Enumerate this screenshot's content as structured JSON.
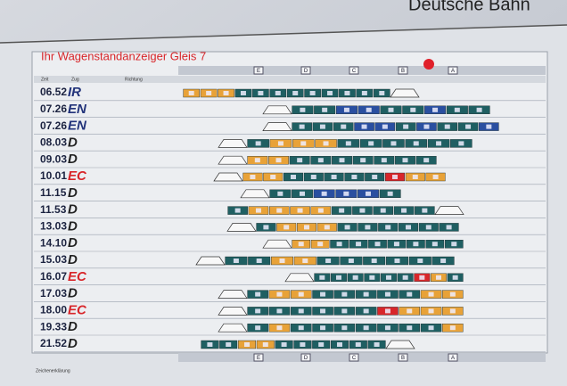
{
  "header": {
    "brand": "Deutsche Bahn",
    "title": "Ihr Wagenstandanzeiger Gleis 7"
  },
  "sectors": [
    "E",
    "D",
    "C",
    "B",
    "A"
  ],
  "columns": [
    "Zeit",
    "Zug",
    "Richtung"
  ],
  "rows": [
    {
      "time": "06.52",
      "train": "IR",
      "color": "#22337a"
    },
    {
      "time": "07.26",
      "train": "EN",
      "color": "#22337a"
    },
    {
      "time": "07.26",
      "train": "EN",
      "color": "#22337a"
    },
    {
      "time": "08.03",
      "train": "D",
      "color": "#222222"
    },
    {
      "time": "09.03",
      "train": "D",
      "color": "#222222"
    },
    {
      "time": "10.01",
      "train": "EC",
      "color": "#d8262a"
    },
    {
      "time": "11.15",
      "train": "D",
      "color": "#222222"
    },
    {
      "time": "11.53",
      "train": "D",
      "color": "#222222"
    },
    {
      "time": "13.03",
      "train": "D",
      "color": "#222222"
    },
    {
      "time": "14.10",
      "train": "D",
      "color": "#222222"
    },
    {
      "time": "15.03",
      "train": "D",
      "color": "#222222"
    },
    {
      "time": "16.07",
      "train": "EC",
      "color": "#d8262a"
    },
    {
      "time": "17.03",
      "train": "D",
      "color": "#222222"
    },
    {
      "time": "18.00",
      "train": "EC",
      "color": "#d8262a"
    },
    {
      "time": "19.33",
      "train": "D",
      "color": "#222222"
    },
    {
      "time": "21.52",
      "train": "D",
      "color": "#222222"
    }
  ],
  "legend": {
    "title": "Zeichenerklärung"
  }
}
